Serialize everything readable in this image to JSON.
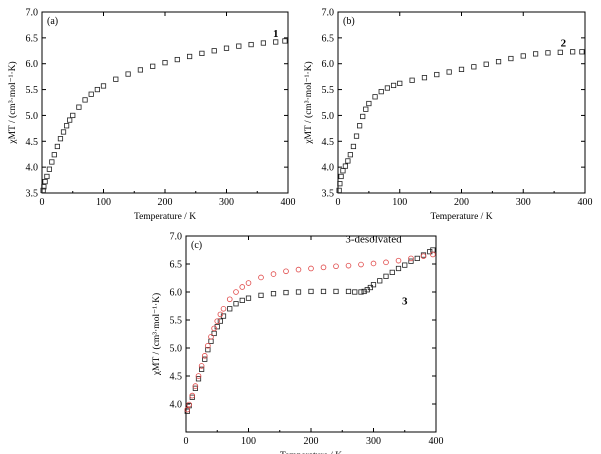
{
  "colors": {
    "black_series": "#222222",
    "red_series": "#e04848",
    "axis": "#000000"
  },
  "chart_data": [
    {
      "type": "scatter",
      "panel_label": "(a)",
      "xlabel": "Temperature / K",
      "ylabel_html": "χMT / (cm³·mol⁻¹·K)",
      "xlim": [
        0,
        400
      ],
      "ylim": [
        3.5,
        7.0
      ],
      "x_ticks": [
        "0",
        "100",
        "200",
        "300",
        "400"
      ],
      "y_ticks": [
        "3.5",
        "4.0",
        "4.5",
        "5.0",
        "5.5",
        "6.0",
        "6.5",
        "7.0"
      ],
      "grid": false,
      "series": [
        {
          "name": "1",
          "color": "#222222",
          "marker": "square-open",
          "points": [
            [
              1.8,
              3.55
            ],
            [
              3,
              3.62
            ],
            [
              5,
              3.72
            ],
            [
              8,
              3.82
            ],
            [
              12,
              3.96
            ],
            [
              16,
              4.1
            ],
            [
              20,
              4.24
            ],
            [
              25,
              4.4
            ],
            [
              30,
              4.55
            ],
            [
              35,
              4.68
            ],
            [
              40,
              4.8
            ],
            [
              45,
              4.91
            ],
            [
              50,
              5.0
            ],
            [
              60,
              5.16
            ],
            [
              70,
              5.3
            ],
            [
              80,
              5.41
            ],
            [
              90,
              5.5
            ],
            [
              100,
              5.57
            ],
            [
              120,
              5.7
            ],
            [
              140,
              5.8
            ],
            [
              160,
              5.88
            ],
            [
              180,
              5.95
            ],
            [
              200,
              6.02
            ],
            [
              220,
              6.08
            ],
            [
              240,
              6.14
            ],
            [
              260,
              6.2
            ],
            [
              280,
              6.25
            ],
            [
              300,
              6.3
            ],
            [
              320,
              6.34
            ],
            [
              340,
              6.37
            ],
            [
              360,
              6.4
            ],
            [
              380,
              6.42
            ],
            [
              395,
              6.44
            ]
          ]
        }
      ]
    },
    {
      "type": "scatter",
      "panel_label": "(b)",
      "xlabel": "Temperature / K",
      "ylabel_html": "χMT / (cm³·mol⁻¹·K)",
      "xlim": [
        0,
        400
      ],
      "ylim": [
        3.5,
        7.0
      ],
      "x_ticks": [
        "0",
        "100",
        "200",
        "300",
        "400"
      ],
      "y_ticks": [
        "3.5",
        "4.0",
        "4.5",
        "5.0",
        "5.5",
        "6.0",
        "6.5",
        "7.0"
      ],
      "grid": false,
      "series": [
        {
          "name": "2",
          "color": "#222222",
          "marker": "square-open",
          "points": [
            [
              1.8,
              3.55
            ],
            [
              3,
              3.68
            ],
            [
              5,
              3.82
            ],
            [
              8,
              3.93
            ],
            [
              12,
              4.02
            ],
            [
              16,
              4.12
            ],
            [
              20,
              4.24
            ],
            [
              25,
              4.4
            ],
            [
              30,
              4.6
            ],
            [
              35,
              4.8
            ],
            [
              40,
              4.98
            ],
            [
              45,
              5.12
            ],
            [
              50,
              5.23
            ],
            [
              60,
              5.36
            ],
            [
              70,
              5.46
            ],
            [
              80,
              5.53
            ],
            [
              90,
              5.58
            ],
            [
              100,
              5.62
            ],
            [
              120,
              5.68
            ],
            [
              140,
              5.73
            ],
            [
              160,
              5.79
            ],
            [
              180,
              5.84
            ],
            [
              200,
              5.89
            ],
            [
              220,
              5.94
            ],
            [
              240,
              5.99
            ],
            [
              260,
              6.04
            ],
            [
              280,
              6.1
            ],
            [
              300,
              6.15
            ],
            [
              320,
              6.19
            ],
            [
              340,
              6.21
            ],
            [
              360,
              6.22
            ],
            [
              380,
              6.23
            ],
            [
              395,
              6.23
            ]
          ]
        }
      ]
    },
    {
      "type": "scatter",
      "panel_label": "(c)",
      "xlabel": "Temperature / K",
      "ylabel_html": "χMT / (cm³·mol⁻¹·K)",
      "xlim": [
        0,
        400
      ],
      "ylim": [
        3.5,
        7.0
      ],
      "x_ticks": [
        "0",
        "100",
        "200",
        "300",
        "400"
      ],
      "y_ticks": [
        "4.0",
        "4.5",
        "5.0",
        "5.5",
        "6.0",
        "6.5",
        "7.0"
      ],
      "grid": false,
      "series": [
        {
          "name": "3",
          "color": "#222222",
          "marker": "square-open",
          "points": [
            [
              2,
              3.87
            ],
            [
              5,
              3.97
            ],
            [
              10,
              4.12
            ],
            [
              15,
              4.28
            ],
            [
              20,
              4.45
            ],
            [
              25,
              4.62
            ],
            [
              30,
              4.8
            ],
            [
              35,
              4.97
            ],
            [
              40,
              5.12
            ],
            [
              45,
              5.26
            ],
            [
              50,
              5.38
            ],
            [
              55,
              5.48
            ],
            [
              60,
              5.57
            ],
            [
              70,
              5.7
            ],
            [
              80,
              5.79
            ],
            [
              90,
              5.85
            ],
            [
              100,
              5.89
            ],
            [
              120,
              5.94
            ],
            [
              140,
              5.97
            ],
            [
              160,
              5.99
            ],
            [
              180,
              6.0
            ],
            [
              200,
              6.01
            ],
            [
              220,
              6.01
            ],
            [
              240,
              6.01
            ],
            [
              260,
              6.01
            ],
            [
              270,
              6.0
            ],
            [
              280,
              6.0
            ],
            [
              285,
              6.01
            ],
            [
              290,
              6.04
            ],
            [
              295,
              6.08
            ],
            [
              300,
              6.13
            ],
            [
              310,
              6.2
            ],
            [
              320,
              6.28
            ],
            [
              330,
              6.35
            ],
            [
              340,
              6.42
            ],
            [
              350,
              6.48
            ],
            [
              360,
              6.55
            ],
            [
              370,
              6.6
            ],
            [
              380,
              6.66
            ],
            [
              390,
              6.72
            ],
            [
              395,
              6.75
            ]
          ]
        },
        {
          "name": "3-desolvated",
          "color": "#e04848",
          "marker": "circle-open",
          "points": [
            [
              2,
              3.9
            ],
            [
              5,
              3.99
            ],
            [
              10,
              4.15
            ],
            [
              15,
              4.32
            ],
            [
              20,
              4.5
            ],
            [
              25,
              4.68
            ],
            [
              30,
              4.86
            ],
            [
              35,
              5.04
            ],
            [
              40,
              5.2
            ],
            [
              45,
              5.35
            ],
            [
              50,
              5.48
            ],
            [
              55,
              5.6
            ],
            [
              60,
              5.7
            ],
            [
              70,
              5.87
            ],
            [
              80,
              6.0
            ],
            [
              90,
              6.09
            ],
            [
              100,
              6.16
            ],
            [
              120,
              6.26
            ],
            [
              140,
              6.32
            ],
            [
              160,
              6.37
            ],
            [
              180,
              6.4
            ],
            [
              200,
              6.42
            ],
            [
              220,
              6.44
            ],
            [
              240,
              6.46
            ],
            [
              260,
              6.47
            ],
            [
              280,
              6.49
            ],
            [
              300,
              6.51
            ],
            [
              320,
              6.53
            ],
            [
              340,
              6.56
            ],
            [
              360,
              6.6
            ],
            [
              380,
              6.64
            ],
            [
              395,
              6.67
            ]
          ]
        }
      ]
    }
  ]
}
